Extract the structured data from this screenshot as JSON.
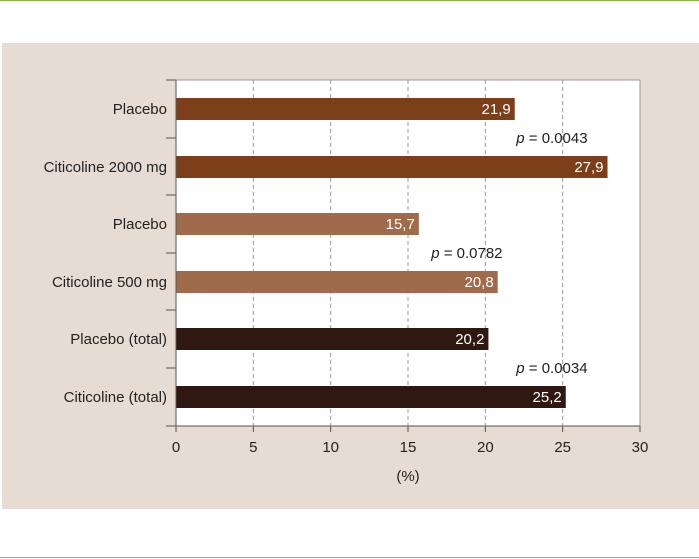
{
  "colors": {
    "page_background": "#ffffff",
    "panel_background": "#e6dcd3",
    "rule_green": "#8cb84a",
    "bar_dark_orange": "#7c3f1a",
    "bar_light_brown": "#9f6b4a",
    "bar_dark_brown": "#2e1810"
  },
  "chart_data": {
    "type": "bar",
    "orientation": "horizontal",
    "categories": [
      "Placebo",
      "Citicoline 2000 mg",
      "Placebo",
      "Citicoline 500 mg",
      "Placebo (total)",
      "Citicoline (total)"
    ],
    "values": [
      21.9,
      27.9,
      15.7,
      20.8,
      20.2,
      25.2
    ],
    "value_labels": [
      "21,9",
      "27,9",
      "15,7",
      "20,8",
      "20,2",
      "25,2"
    ],
    "bar_colors": [
      "#7c3f1a",
      "#7c3f1a",
      "#9f6b4a",
      "#9f6b4a",
      "#2e1810",
      "#2e1810"
    ],
    "xlabel": "(%)",
    "xlim": [
      0,
      30
    ],
    "xticks": [
      "0",
      "5",
      "10",
      "15",
      "20",
      "25",
      "30"
    ],
    "grid": "vertical dashed",
    "annotations": [
      {
        "prefix": "p",
        "text": " = 0.0043",
        "x": 22,
        "between": [
          0,
          1
        ]
      },
      {
        "prefix": "p",
        "text": " = 0.0782",
        "x": 16.5,
        "between": [
          2,
          3
        ]
      },
      {
        "prefix": "p",
        "text": " = 0.0034",
        "x": 22,
        "between": [
          4,
          5
        ]
      }
    ]
  }
}
